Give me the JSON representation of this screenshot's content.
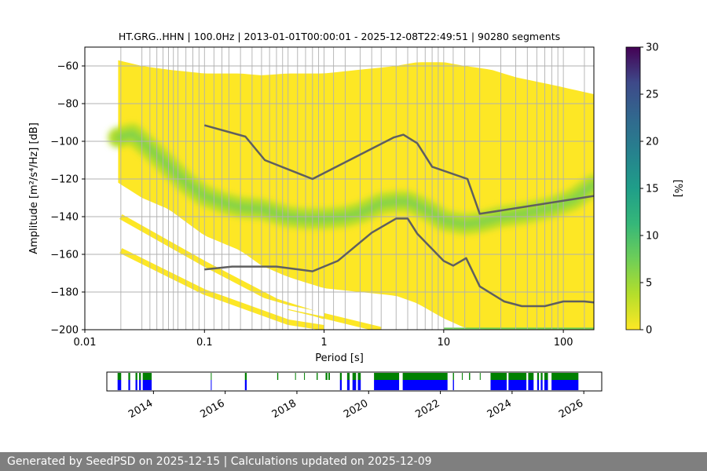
{
  "footer": {
    "text": "Generated by SeedPSD on 2025-12-15 | Calculations updated on 2025-12-09"
  },
  "chart_data": {
    "type": "heatmap",
    "title": "HT.GRG..HHN | 100.0Hz | 2013-01-01T00:00:01 - 2025-12-08T22:49:51 | 90280 segments",
    "xlabel": "Period [s]",
    "ylabel": "Amplitude [m²/s⁴/Hz] [dB]",
    "x_scale": "log",
    "xlim": [
      0.01,
      180
    ],
    "ylim": [
      -200,
      -50
    ],
    "x_ticks": [
      {
        "value": 0.01,
        "label": "0.01"
      },
      {
        "value": 0.1,
        "label": "0.1"
      },
      {
        "value": 1,
        "label": "1"
      },
      {
        "value": 10,
        "label": "10"
      },
      {
        "value": 100,
        "label": "100"
      }
    ],
    "y_ticks": [
      -60,
      -80,
      -100,
      -120,
      -140,
      -160,
      -180,
      -200
    ],
    "grid": true,
    "grid_periods": [
      0.02,
      0.03,
      0.035,
      0.04,
      0.045,
      0.05,
      0.055,
      0.06,
      0.07,
      0.08,
      0.09,
      0.1,
      0.12,
      0.14,
      0.16,
      0.2,
      0.25,
      0.3,
      0.35,
      0.4,
      0.45,
      0.5,
      0.6,
      0.7,
      0.8,
      0.9,
      1,
      1.2,
      1.5,
      2,
      2.5,
      3,
      4,
      5,
      6,
      7,
      8,
      9,
      10,
      12,
      15,
      20,
      30,
      40,
      50,
      60,
      70,
      80,
      90,
      100,
      150
    ],
    "colorbar": {
      "label": "[%]",
      "min": 0,
      "max": 30,
      "ticks": [
        0,
        5,
        10,
        15,
        20,
        25,
        30
      ],
      "colormap": "viridis_r"
    },
    "density_support": {
      "period": [
        0.019,
        0.03,
        0.05,
        0.1,
        0.2,
        0.3,
        0.5,
        1,
        2,
        4,
        6,
        10,
        15,
        25,
        40,
        80,
        180
      ],
      "upper_db": [
        -57,
        -60,
        -62,
        -64,
        -64,
        -65,
        -64,
        -64,
        -62,
        -60,
        -58,
        -58,
        -60,
        -62,
        -66,
        -70,
        -75
      ],
      "lower_db": [
        -122,
        -130,
        -136,
        -150,
        -158,
        -166,
        -172,
        -178,
        -180,
        -182,
        -186,
        -194,
        -199,
        -200,
        -200,
        -200,
        -200
      ],
      "note_bands": "sparse scattered bands between -140 and -200"
    },
    "density_mode": {
      "period": [
        0.019,
        0.025,
        0.035,
        0.05,
        0.07,
        0.1,
        0.15,
        0.2,
        0.3,
        0.5,
        0.7,
        1,
        1.5,
        2,
        3,
        4,
        5,
        6,
        8,
        10,
        15,
        20,
        30,
        50,
        80,
        120,
        180
      ],
      "db": [
        -98,
        -96,
        -104,
        -113,
        -122,
        -129,
        -133,
        -135,
        -136,
        -140,
        -141,
        -141,
        -140,
        -138,
        -133,
        -132,
        -132,
        -134,
        -138,
        -142,
        -144,
        -143,
        -140,
        -138,
        -135,
        -131,
        -123
      ]
    },
    "series": [
      {
        "name": "",
        "period": [
          0.1,
          0.22,
          0.32,
          0.8,
          3.8,
          4.6,
          6.0,
          8.0,
          15.8,
          20.0,
          180
        ],
        "db": [
          -91.5,
          -97.5,
          -110,
          -120,
          -98,
          -96.5,
          -101,
          -113.5,
          -120,
          -138.5,
          -129
        ]
      },
      {
        "name": "",
        "period": [
          0.1,
          0.17,
          0.4,
          0.8,
          1.3,
          2.5,
          4.0,
          5.0,
          6.0,
          10.0,
          12.0,
          15.4,
          20.0,
          32.0,
          45.0,
          70.0,
          100,
          150,
          180
        ],
        "db": [
          -168,
          -166.5,
          -166.5,
          -169,
          -163.5,
          -148.5,
          -141,
          -141,
          -149,
          -163.5,
          -166,
          -162,
          -177,
          -185,
          -187.5,
          -187.5,
          -185,
          -185,
          -185.5
        ]
      }
    ],
    "data_availability": {
      "years": [
        2014,
        2016,
        2018,
        2020,
        2022,
        2024,
        2026
      ],
      "time_range": [
        2012.7,
        2026.5
      ],
      "legend": [
        {
          "name": "",
          "color": "#008000"
        },
        {
          "name": "",
          "color": "#0000ff"
        }
      ],
      "green_spans": [
        [
          2013.0,
          2013.1
        ],
        [
          2013.3,
          2013.35
        ],
        [
          2013.5,
          2013.55
        ],
        [
          2013.6,
          2013.65
        ],
        [
          2013.7,
          2013.95
        ],
        [
          2015.6,
          2015.62
        ],
        [
          2016.55,
          2016.6
        ],
        [
          2017.45,
          2017.48
        ],
        [
          2017.95,
          2017.97
        ],
        [
          2018.2,
          2018.22
        ],
        [
          2018.55,
          2018.58
        ],
        [
          2018.8,
          2018.85
        ],
        [
          2018.88,
          2018.92
        ],
        [
          2019.2,
          2019.25
        ],
        [
          2019.4,
          2019.47
        ],
        [
          2019.55,
          2019.65
        ],
        [
          2019.7,
          2019.78
        ],
        [
          2020.15,
          2020.85
        ],
        [
          2020.95,
          2022.2
        ],
        [
          2022.35,
          2022.38
        ],
        [
          2022.6,
          2022.62
        ],
        [
          2022.8,
          2022.83
        ],
        [
          2023.1,
          2023.12
        ],
        [
          2023.4,
          2023.85
        ],
        [
          2023.9,
          2024.4
        ],
        [
          2024.45,
          2024.6
        ],
        [
          2024.7,
          2024.75
        ],
        [
          2024.8,
          2024.85
        ],
        [
          2024.9,
          2025.0
        ],
        [
          2025.1,
          2025.85
        ]
      ],
      "blue_spans": [
        [
          2013.0,
          2013.1
        ],
        [
          2013.3,
          2013.35
        ],
        [
          2013.5,
          2013.55
        ],
        [
          2013.6,
          2013.65
        ],
        [
          2013.7,
          2013.95
        ],
        [
          2015.6,
          2015.62
        ],
        [
          2016.55,
          2016.6
        ],
        [
          2019.2,
          2019.25
        ],
        [
          2019.4,
          2019.47
        ],
        [
          2019.55,
          2019.65
        ],
        [
          2019.7,
          2019.78
        ],
        [
          2020.15,
          2020.85
        ],
        [
          2020.95,
          2022.2
        ],
        [
          2022.35,
          2022.38
        ],
        [
          2023.4,
          2023.85
        ],
        [
          2023.9,
          2024.4
        ],
        [
          2024.45,
          2024.6
        ],
        [
          2024.7,
          2024.75
        ],
        [
          2024.8,
          2024.85
        ],
        [
          2024.9,
          2025.0
        ],
        [
          2025.1,
          2025.85
        ]
      ]
    },
    "colors": {
      "curve": "#5f5f5f",
      "grid": "#b0b0b0",
      "heat_low": "#fde725",
      "heat_mid": "#b5de2b",
      "heat_high": "#6ece58"
    }
  }
}
